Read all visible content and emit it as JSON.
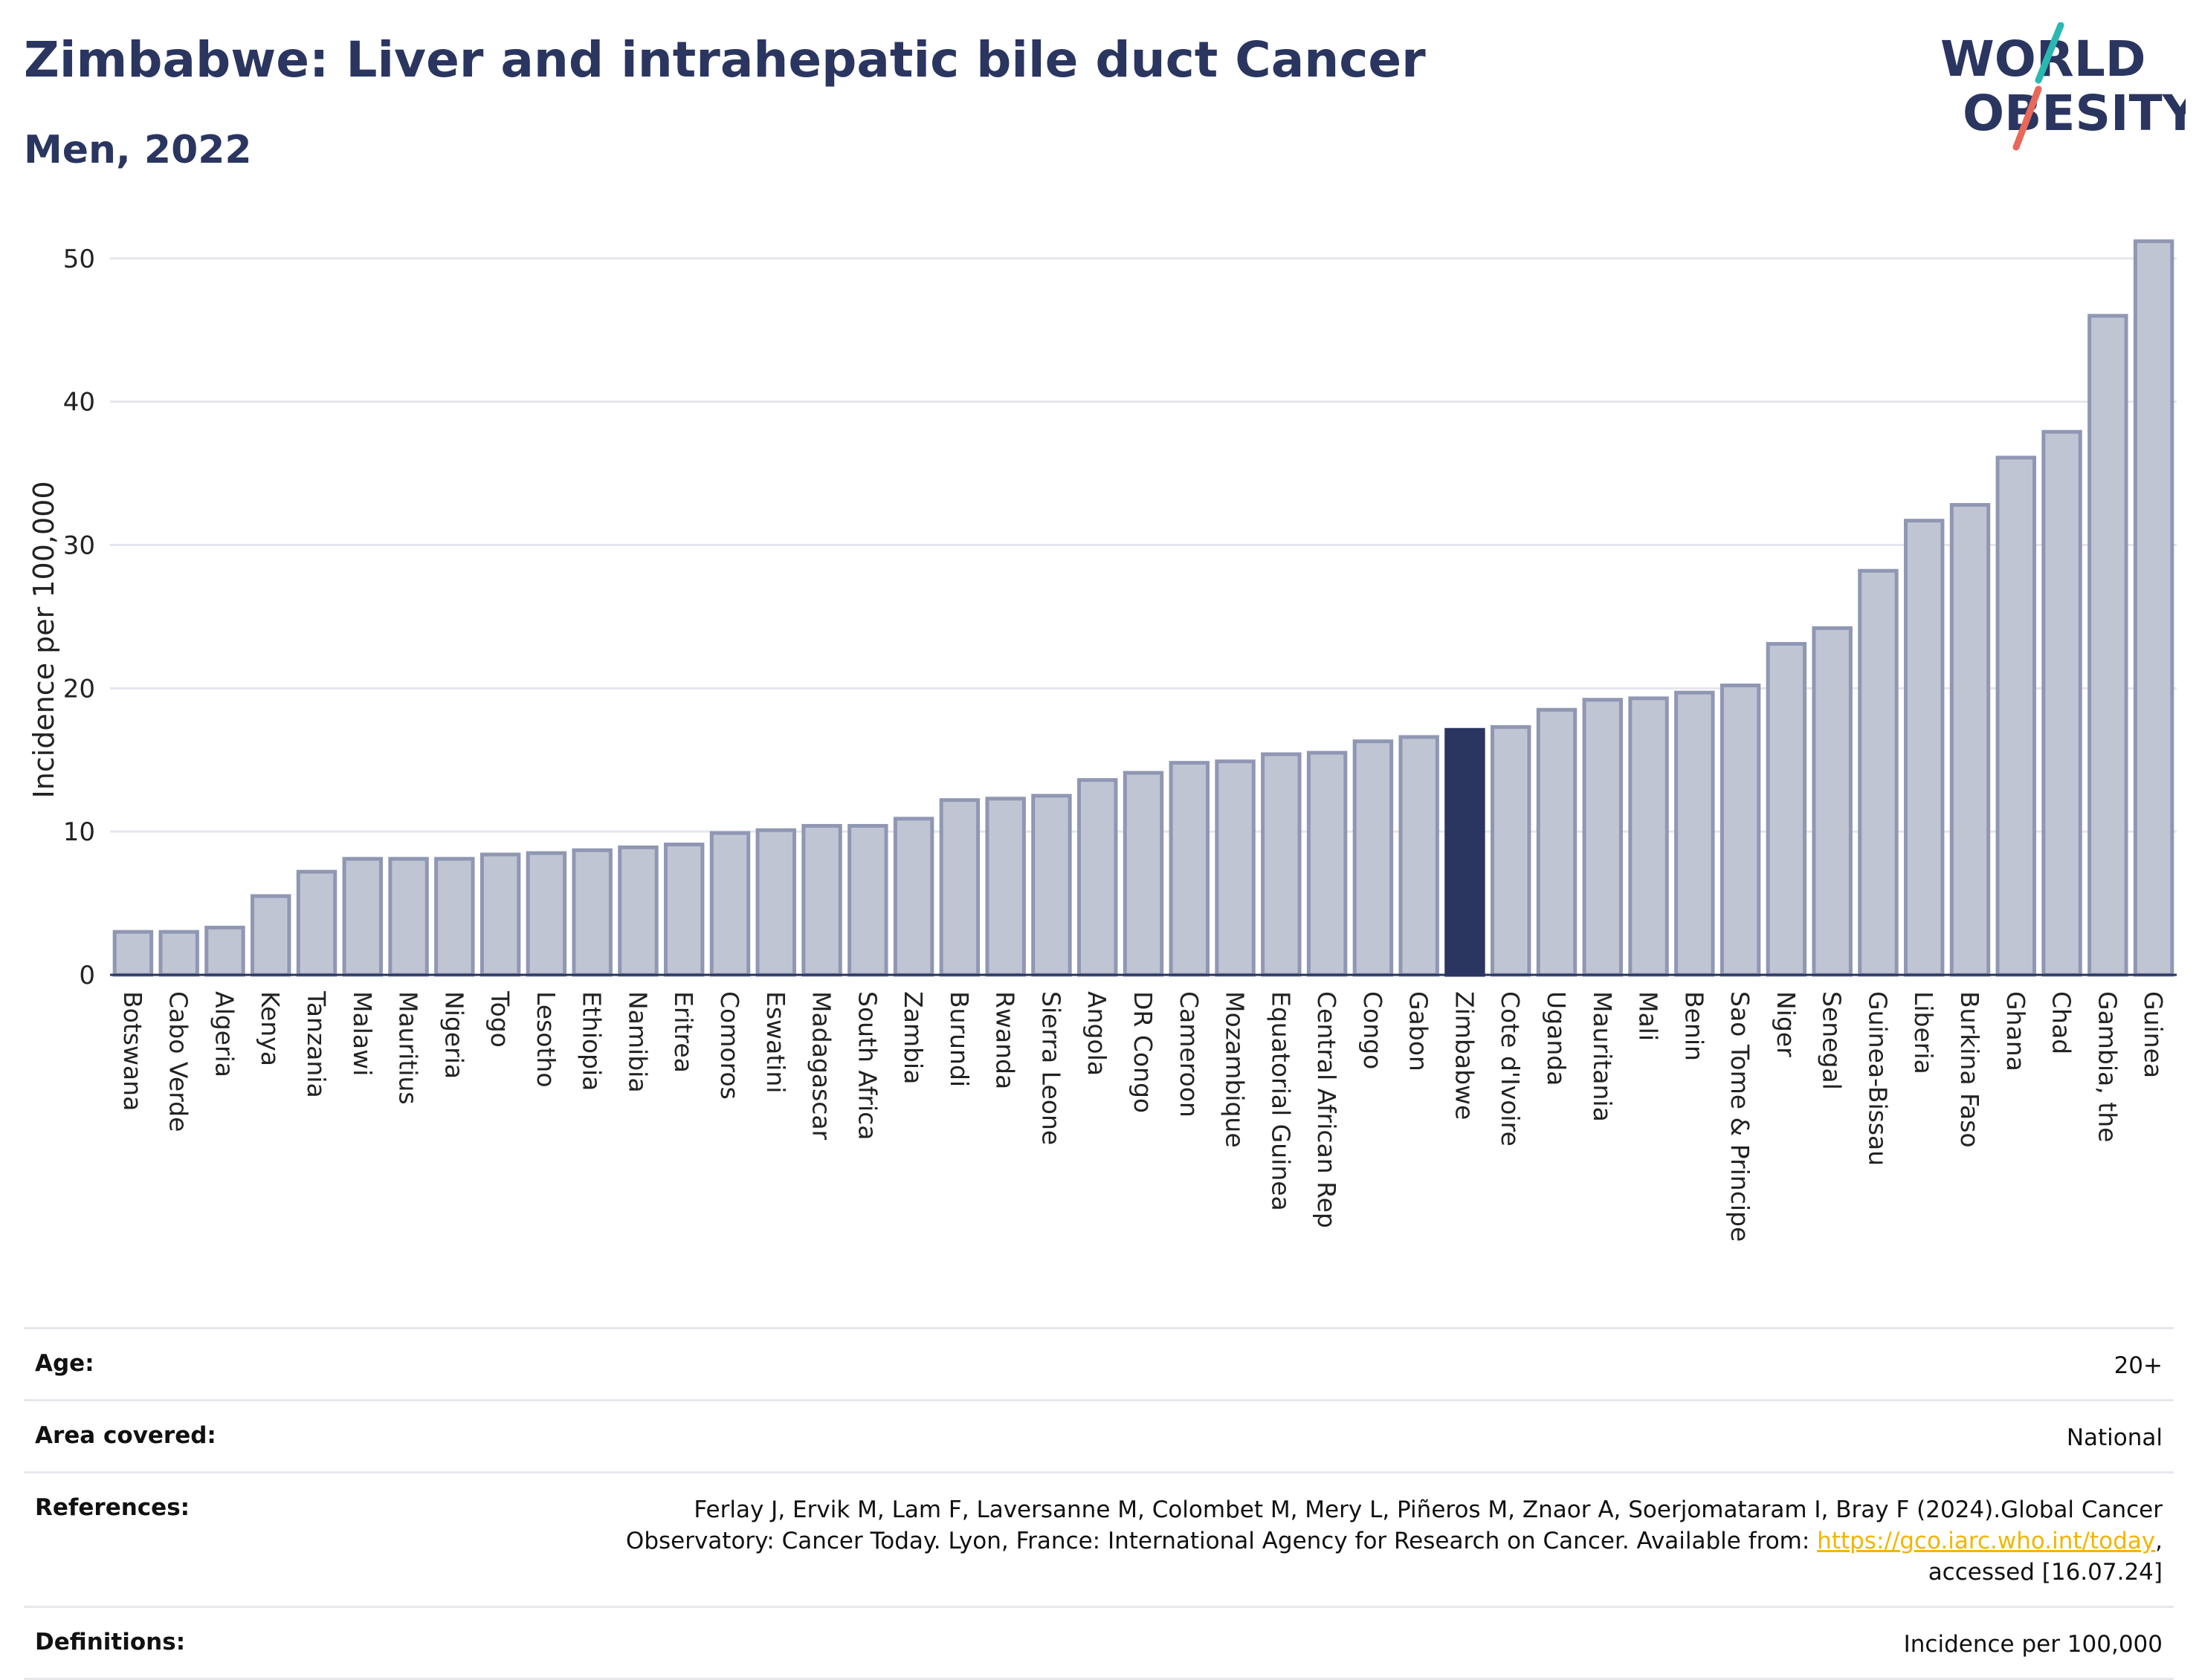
{
  "header": {
    "title": "Zimbabwe: Liver and intrahepatic bile duct Cancer",
    "subtitle": "Men, 2022"
  },
  "logo": {
    "line1": "WORLD",
    "line2": "OBESITY",
    "colors": {
      "text": "#2a3560",
      "slash_top": "#2bb8b0",
      "slash_bottom": "#e8685a"
    }
  },
  "chart_data": {
    "type": "bar",
    "ylabel": "Incidence per 100,000",
    "ylim": [
      0,
      53
    ],
    "yticks": [
      0,
      10,
      20,
      30,
      40,
      50
    ],
    "grid": true,
    "highlight": "Zimbabwe",
    "colors": {
      "bar": "#c0c5d3",
      "bar_edge": "#8f97b3",
      "highlight": "#2a3560"
    },
    "categories": [
      "Botswana",
      "Cabo Verde",
      "Algeria",
      "Kenya",
      "Tanzania",
      "Malawi",
      "Mauritius",
      "Nigeria",
      "Togo",
      "Lesotho",
      "Ethiopia",
      "Namibia",
      "Eritrea",
      "Comoros",
      "Eswatini",
      "Madagascar",
      "South Africa",
      "Zambia",
      "Burundi",
      "Rwanda",
      "Sierra Leone",
      "Angola",
      "DR Congo",
      "Cameroon",
      "Mozambique",
      "Equatorial Guinea",
      "Central African Rep",
      "Congo",
      "Gabon",
      "Zimbabwe",
      "Cote d'Ivoire",
      "Uganda",
      "Mauritania",
      "Mali",
      "Benin",
      "Sao Tome & Principe",
      "Niger",
      "Senegal",
      "Guinea-Bissau",
      "Liberia",
      "Burkina Faso",
      "Ghana",
      "Chad",
      "Gambia, the",
      "Guinea"
    ],
    "values": [
      3.0,
      3.0,
      3.3,
      5.5,
      7.2,
      8.1,
      8.1,
      8.1,
      8.4,
      8.5,
      8.7,
      8.9,
      9.1,
      9.9,
      10.1,
      10.4,
      10.4,
      10.9,
      12.2,
      12.3,
      12.5,
      13.6,
      14.1,
      14.8,
      14.9,
      15.4,
      15.5,
      16.3,
      16.6,
      17.1,
      17.3,
      18.5,
      19.2,
      19.3,
      19.7,
      20.2,
      23.1,
      24.2,
      28.2,
      31.7,
      32.8,
      36.1,
      37.9,
      46.0,
      51.2
    ]
  },
  "meta": {
    "age_label": "Age:",
    "age_value": "20+",
    "area_label": "Area covered:",
    "area_value": "National",
    "references_label": "References:",
    "references_text_1": "Ferlay J, Ervik M, Lam F, Laversanne M, Colombet M, Mery L, Piñeros M, Znaor A, Soerjomataram I, Bray F (2024).Global Cancer",
    "references_text_2": "Observatory: Cancer Today. Lyon, France: International Agency for Research on Cancer. Available from:",
    "references_link": "https://gco.iarc.who.int/today",
    "references_text_3": "accessed [16.07.24]",
    "definitions_label": "Definitions:",
    "definitions_value": "Incidence per 100,000"
  }
}
